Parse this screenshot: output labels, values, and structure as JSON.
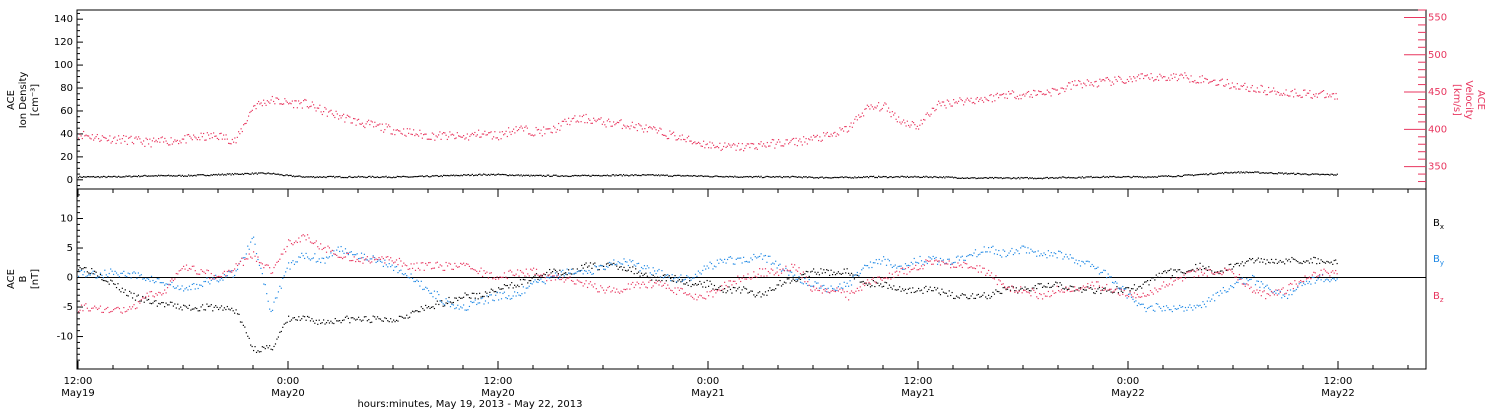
{
  "chart_data": [
    {
      "type": "scatter",
      "panel": "top",
      "ylabel_left": [
        "ACE",
        "Ion Density",
        "[cm⁻³]"
      ],
      "ylabel_right": [
        "ACE",
        "Velocity",
        "[km/s]"
      ],
      "ylim_left": [
        -8,
        148
      ],
      "ylim_right": [
        320,
        560
      ],
      "yticks_left": [
        0,
        20,
        40,
        60,
        80,
        100,
        120,
        140
      ],
      "yticks_right": [
        350,
        400,
        450,
        500,
        550
      ],
      "colors": {
        "density": "#000000",
        "velocity": "#e8365f"
      },
      "series": [
        {
          "key": "density",
          "axis": "left",
          "x": [
            0,
            1,
            2,
            3,
            4,
            5,
            6,
            7,
            8,
            9,
            10,
            11,
            12,
            13,
            14,
            15,
            16,
            17,
            18,
            19,
            20,
            21,
            22,
            23,
            24,
            25,
            26,
            27,
            28,
            29,
            30,
            31,
            32,
            33,
            34,
            35,
            36,
            37,
            38,
            39,
            40,
            41,
            42,
            43,
            44,
            45,
            46,
            47,
            48,
            49,
            50,
            51,
            52,
            53,
            54,
            55,
            56,
            57,
            58,
            59,
            60,
            61,
            62,
            63,
            64,
            65,
            66,
            67,
            68,
            69,
            70,
            71,
            72
          ],
          "values": [
            3,
            3,
            3,
            3.5,
            4,
            4,
            4,
            4.5,
            5,
            5.5,
            6,
            6,
            4,
            3,
            3,
            3,
            3,
            3,
            3,
            3,
            3.5,
            4,
            4.5,
            5,
            5,
            4.5,
            4,
            4,
            4,
            4,
            4.5,
            4.5,
            4.5,
            4.5,
            4,
            4,
            3.5,
            3.5,
            3,
            3,
            3,
            3,
            2.5,
            2.5,
            2.5,
            3,
            3,
            3,
            3,
            3,
            2.5,
            2,
            2,
            2,
            2,
            2,
            2.5,
            2.5,
            3,
            3,
            3,
            3,
            3.5,
            4,
            5,
            6,
            7,
            7,
            6.5,
            6,
            5.5,
            5,
            5
          ]
        },
        {
          "key": "velocity",
          "axis": "right",
          "x": [
            0,
            1,
            2,
            3,
            4,
            5,
            6,
            7,
            8,
            9,
            10,
            11,
            12,
            13,
            14,
            15,
            16,
            17,
            18,
            19,
            20,
            21,
            22,
            23,
            24,
            25,
            26,
            27,
            28,
            29,
            30,
            31,
            32,
            33,
            34,
            35,
            36,
            37,
            38,
            39,
            40,
            41,
            42,
            43,
            44,
            45,
            46,
            47,
            48,
            49,
            50,
            51,
            52,
            53,
            54,
            55,
            56,
            57,
            58,
            59,
            60,
            61,
            62,
            63,
            64,
            65,
            66,
            67,
            68,
            69,
            70,
            71,
            72
          ],
          "values": [
            395,
            390,
            388,
            386,
            383,
            385,
            387,
            390,
            392,
            385,
            432,
            440,
            436,
            435,
            425,
            418,
            410,
            405,
            400,
            396,
            392,
            392,
            390,
            395,
            392,
            402,
            398,
            398,
            412,
            415,
            410,
            408,
            404,
            398,
            392,
            385,
            380,
            377,
            377,
            380,
            382,
            384,
            388,
            392,
            402,
            428,
            432,
            412,
            405,
            432,
            438,
            440,
            442,
            448,
            447,
            450,
            452,
            462,
            462,
            465,
            467,
            470,
            470,
            472,
            468,
            465,
            460,
            456,
            452,
            450,
            449,
            447,
            445
          ]
        }
      ]
    },
    {
      "type": "scatter",
      "panel": "bottom",
      "ylabel_left": [
        "ACE",
        "B",
        "[nT]"
      ],
      "ylim": [
        -15.5,
        15
      ],
      "yticks": [
        -10,
        -5,
        0,
        5,
        10
      ],
      "legend": [
        "Bx",
        "By",
        "Bz"
      ],
      "legend_position": "right",
      "colors": {
        "Bx": "#000000",
        "By": "#1e88e5",
        "Bz": "#e8365f"
      },
      "series": [
        {
          "key": "Bx",
          "x": [
            0,
            1,
            2,
            3,
            4,
            5,
            6,
            7,
            8,
            9,
            10,
            11,
            12,
            13,
            14,
            15,
            16,
            17,
            18,
            19,
            20,
            21,
            22,
            23,
            24,
            25,
            26,
            27,
            28,
            29,
            30,
            31,
            32,
            33,
            34,
            35,
            36,
            37,
            38,
            39,
            40,
            41,
            42,
            43,
            44,
            45,
            46,
            47,
            48,
            49,
            50,
            51,
            52,
            53,
            54,
            55,
            56,
            57,
            58,
            59,
            60,
            61,
            62,
            63,
            64,
            65,
            66,
            67,
            68,
            69,
            70,
            71,
            72
          ],
          "values": [
            2,
            1,
            -1,
            -3,
            -4,
            -4.5,
            -5,
            -5,
            -5,
            -5.5,
            -12,
            -12,
            -7,
            -7,
            -7.5,
            -7,
            -7,
            -7,
            -7,
            -6,
            -5,
            -4,
            -3,
            -3,
            -2,
            -1,
            0,
            1,
            1,
            2,
            2,
            2,
            1,
            0,
            0,
            -1,
            -1,
            -2,
            -2,
            -3,
            -1,
            0,
            1,
            1,
            1,
            -1,
            -1,
            -2,
            -2,
            -2,
            -3,
            -3,
            -3,
            -2,
            -2,
            -1,
            -1,
            -2,
            -2,
            -2,
            -2,
            -1,
            1,
            1,
            2,
            1,
            2,
            3,
            3,
            3,
            3,
            3,
            2.5
          ]
        },
        {
          "key": "By",
          "x": [
            0,
            1,
            2,
            3,
            4,
            5,
            6,
            7,
            8,
            9,
            10,
            11,
            12,
            13,
            14,
            15,
            16,
            17,
            18,
            19,
            20,
            21,
            22,
            23,
            24,
            25,
            26,
            27,
            28,
            29,
            30,
            31,
            32,
            33,
            34,
            35,
            36,
            37,
            38,
            39,
            40,
            41,
            42,
            43,
            44,
            45,
            46,
            47,
            48,
            49,
            50,
            51,
            52,
            53,
            54,
            55,
            56,
            57,
            58,
            59,
            60,
            61,
            62,
            63,
            64,
            65,
            66,
            67,
            68,
            69,
            70,
            71,
            72
          ],
          "values": [
            1,
            0.5,
            1,
            0.5,
            0,
            -1,
            -2,
            -1,
            0,
            1,
            7,
            -6,
            2,
            4,
            3,
            5,
            4,
            3,
            2,
            0,
            -2,
            -4,
            -5,
            -4,
            -3,
            -3,
            -1,
            0,
            1,
            1,
            2,
            3,
            2,
            1,
            0,
            0,
            2,
            3,
            3,
            4,
            2,
            0,
            -1,
            -2,
            -1,
            2,
            3,
            2,
            3,
            3,
            3,
            4,
            5,
            4,
            5,
            4,
            4,
            3,
            2,
            0,
            -3,
            -5,
            -5,
            -5,
            -5,
            -3,
            -1,
            0,
            -2,
            -3,
            -1,
            0,
            -0.5
          ]
        },
        {
          "key": "Bz",
          "x": [
            0,
            1,
            2,
            3,
            4,
            5,
            6,
            7,
            8,
            9,
            10,
            11,
            12,
            13,
            14,
            15,
            16,
            17,
            18,
            19,
            20,
            21,
            22,
            23,
            24,
            25,
            26,
            27,
            28,
            29,
            30,
            31,
            32,
            33,
            34,
            35,
            36,
            37,
            38,
            39,
            40,
            41,
            42,
            43,
            44,
            45,
            46,
            47,
            48,
            49,
            50,
            51,
            52,
            53,
            54,
            55,
            56,
            57,
            58,
            59,
            60,
            61,
            62,
            63,
            64,
            65,
            66,
            67,
            68,
            69,
            70,
            71,
            72
          ],
          "values": [
            -5,
            -5,
            -5.5,
            -5.5,
            -3,
            -2,
            2,
            1,
            0,
            2,
            4,
            1,
            6,
            7,
            5,
            4,
            3,
            3,
            3,
            2,
            2,
            2,
            2,
            1,
            0,
            1,
            1,
            0,
            0,
            -1,
            -2,
            -2,
            -1,
            -1,
            -2,
            -3,
            -3,
            -1,
            0,
            1,
            1,
            2,
            -2,
            -2,
            -3,
            -1,
            0,
            1,
            2,
            3,
            2,
            2,
            1,
            -2,
            -2,
            -3,
            -2,
            -2,
            -1,
            -2,
            -3,
            -3,
            -1,
            0,
            1,
            1,
            1,
            -2,
            -3,
            -2,
            0,
            1,
            1
          ]
        }
      ]
    }
  ],
  "x_axis": {
    "ticks": [
      {
        "time": "12:00",
        "date": "May19"
      },
      {
        "time": "0:00",
        "date": "May20"
      },
      {
        "time": "12:00",
        "date": "May20"
      },
      {
        "time": "0:00",
        "date": "May21"
      },
      {
        "time": "12:00",
        "date": "May21"
      },
      {
        "time": "0:00",
        "date": "May22"
      },
      {
        "time": "12:00",
        "date": "May22"
      }
    ],
    "title": "hours:minutes, May 19, 2013 - May 22, 2013"
  },
  "legend_labels": {
    "Bx": "B",
    "Bx_sub": "x",
    "By": "B",
    "By_sub": "y",
    "Bz": "B",
    "Bz_sub": "z"
  }
}
